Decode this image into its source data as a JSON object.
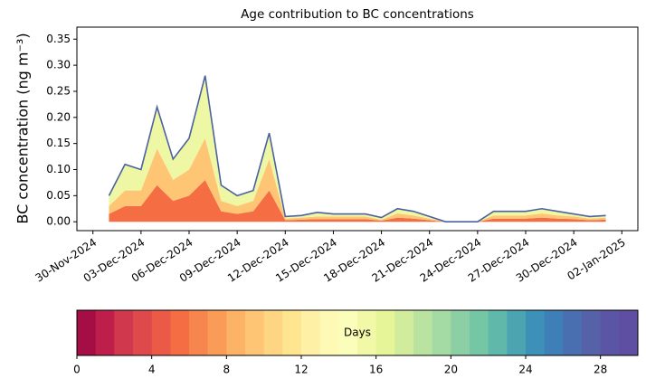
{
  "chart_data": {
    "type": "stacked-area",
    "title": "Age contribution to BC concentrations",
    "ylabel": "BC concentration (ng m⁻³)",
    "x": [
      "2024-12-01",
      "2024-12-02",
      "2024-12-03",
      "2024-12-04",
      "2024-12-05",
      "2024-12-06",
      "2024-12-07",
      "2024-12-08",
      "2024-12-09",
      "2024-12-10",
      "2024-12-11",
      "2024-12-12",
      "2024-12-13",
      "2024-12-14",
      "2024-12-15",
      "2024-12-16",
      "2024-12-17",
      "2024-12-18",
      "2024-12-19",
      "2024-12-20",
      "2024-12-21",
      "2024-12-22",
      "2024-12-23",
      "2024-12-24",
      "2024-12-25",
      "2024-12-26",
      "2024-12-27",
      "2024-12-28",
      "2024-12-29",
      "2024-12-30",
      "2024-12-31",
      "2025-01-01"
    ],
    "series": [
      {
        "color": "#f46d43",
        "values": [
          0.015,
          0.03,
          0.03,
          0.07,
          0.04,
          0.05,
          0.08,
          0.02,
          0.015,
          0.02,
          0.06,
          0.003,
          0.004,
          0.005,
          0.005,
          0.005,
          0.005,
          0.002,
          0.008,
          0.006,
          0.003,
          0,
          0,
          0,
          0.006,
          0.006,
          0.006,
          0.008,
          0.006,
          0.005,
          0.003,
          0.004
        ]
      },
      {
        "color": "#fdc574",
        "values": [
          0.015,
          0.03,
          0.03,
          0.07,
          0.04,
          0.05,
          0.08,
          0.02,
          0.015,
          0.02,
          0.06,
          0.003,
          0.004,
          0.005,
          0.005,
          0.005,
          0.005,
          0.002,
          0.008,
          0.006,
          0.003,
          0,
          0,
          0,
          0.006,
          0.006,
          0.006,
          0.008,
          0.006,
          0.005,
          0.003,
          0.004
        ]
      },
      {
        "color": "#eef7a4",
        "values": [
          0.02,
          0.05,
          0.04,
          0.08,
          0.04,
          0.06,
          0.12,
          0.03,
          0.02,
          0.02,
          0.05,
          0.004,
          0.004,
          0.008,
          0.005,
          0.005,
          0.005,
          0.004,
          0.009,
          0.008,
          0.004,
          0,
          0,
          0,
          0.008,
          0.008,
          0.008,
          0.009,
          0.008,
          0.005,
          0.004,
          0.004
        ]
      }
    ],
    "total": {
      "color": "#4c62a0",
      "values": [
        0.05,
        0.11,
        0.1,
        0.22,
        0.12,
        0.16,
        0.28,
        0.07,
        0.05,
        0.06,
        0.17,
        0.01,
        0.012,
        0.018,
        0.015,
        0.015,
        0.015,
        0.008,
        0.025,
        0.02,
        0.01,
        0,
        0,
        0,
        0.02,
        0.02,
        0.02,
        0.025,
        0.02,
        0.015,
        0.01,
        0.012
      ]
    },
    "xlim": [
      "2024-11-29",
      "2025-01-03"
    ],
    "xticks": [
      {
        "value": "2024-11-30",
        "label": "30-Nov-2024"
      },
      {
        "value": "2024-12-03",
        "label": "03-Dec-2024"
      },
      {
        "value": "2024-12-06",
        "label": "06-Dec-2024"
      },
      {
        "value": "2024-12-09",
        "label": "09-Dec-2024"
      },
      {
        "value": "2024-12-12",
        "label": "12-Dec-2024"
      },
      {
        "value": "2024-12-15",
        "label": "15-Dec-2024"
      },
      {
        "value": "2024-12-18",
        "label": "18-Dec-2024"
      },
      {
        "value": "2024-12-21",
        "label": "21-Dec-2024"
      },
      {
        "value": "2024-12-24",
        "label": "24-Dec-2024"
      },
      {
        "value": "2024-12-27",
        "label": "27-Dec-2024"
      },
      {
        "value": "2024-12-30",
        "label": "30-Dec-2024"
      },
      {
        "value": "2025-01-02",
        "label": "02-Jan-2025"
      }
    ],
    "ylim": [
      -0.017,
      0.373
    ],
    "yticks": [
      {
        "value": 0,
        "label": "0.00"
      },
      {
        "value": 0.05,
        "label": "0.05"
      },
      {
        "value": 0.1,
        "label": "0.10"
      },
      {
        "value": 0.15,
        "label": "0.15"
      },
      {
        "value": 0.2,
        "label": "0.20"
      },
      {
        "value": 0.25,
        "label": "0.25"
      },
      {
        "value": 0.3,
        "label": "0.30"
      },
      {
        "value": 0.35,
        "label": "0.35"
      }
    ],
    "grid": false,
    "colorbar": {
      "label": "Days",
      "lim": [
        0,
        30
      ],
      "ticks": [
        0,
        4,
        8,
        12,
        16,
        20,
        24,
        28
      ],
      "colors": [
        "#a50d45",
        "#bd1f4a",
        "#d0384d",
        "#de4a4c",
        "#ea5a47",
        "#f46d43",
        "#f7864e",
        "#fa9c58",
        "#fdb365",
        "#fdc574",
        "#fed683",
        "#fee690",
        "#fef0a5",
        "#fefab6",
        "#fbfdba",
        "#f1f9a8",
        "#e6f598",
        "#d1ec9c",
        "#bae3a1",
        "#a4daa4",
        "#8ccfa4",
        "#74c6a5",
        "#5fb8a9",
        "#4ba4b0",
        "#3d90b8",
        "#3f7fb8",
        "#4a6fb0",
        "#5662a8",
        "#5a56a5",
        "#5e4fa2"
      ]
    }
  }
}
